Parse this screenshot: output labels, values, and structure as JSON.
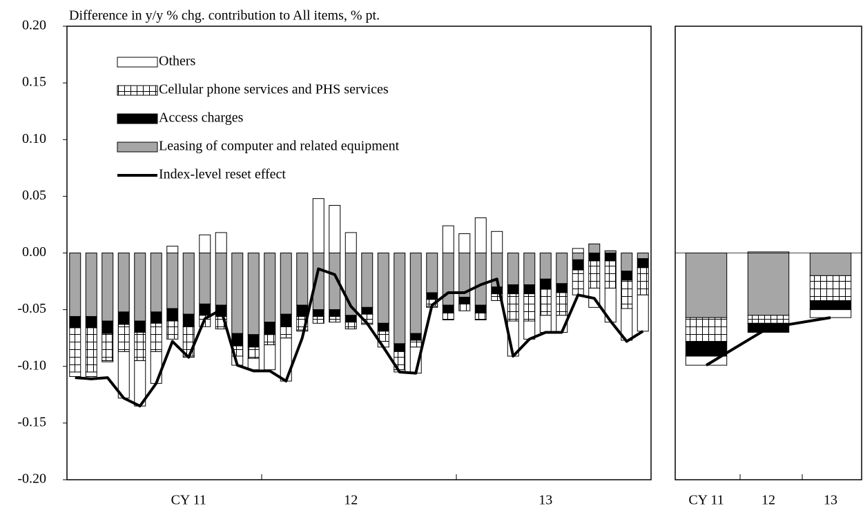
{
  "chart_data": [
    {
      "type": "bar",
      "title": "Difference in y/y % chg. contribution to All items, % pt.",
      "categories": [
        null,
        null,
        null,
        null,
        null,
        null,
        null,
        "CY 11",
        null,
        null,
        null,
        null,
        null,
        null,
        null,
        null,
        null,
        "12",
        null,
        null,
        null,
        null,
        null,
        null,
        null,
        null,
        null,
        null,
        null,
        "13",
        null,
        null,
        null,
        null,
        null,
        null
      ],
      "series": [
        {
          "name": "Leasing of computer and related equipment",
          "color": "#a6a6a6",
          "kind": "bar",
          "values": [
            -0.056,
            -0.056,
            -0.06,
            -0.052,
            -0.06,
            -0.052,
            -0.049,
            -0.054,
            -0.045,
            -0.046,
            -0.071,
            -0.072,
            -0.061,
            -0.054,
            -0.046,
            -0.05,
            -0.05,
            -0.055,
            -0.048,
            -0.062,
            -0.08,
            -0.071,
            -0.035,
            -0.046,
            -0.039,
            -0.046,
            -0.03,
            -0.028,
            -0.028,
            -0.023,
            -0.027,
            -0.006,
            0.008,
            0.002,
            -0.016,
            -0.005
          ]
        },
        {
          "name": "Access charges",
          "color": "#000000",
          "kind": "bar",
          "values": [
            -0.01,
            -0.01,
            -0.011,
            -0.011,
            -0.01,
            -0.01,
            -0.011,
            -0.011,
            -0.01,
            -0.01,
            -0.011,
            -0.011,
            -0.011,
            -0.011,
            -0.01,
            -0.006,
            -0.006,
            -0.006,
            -0.006,
            -0.007,
            -0.007,
            -0.006,
            -0.006,
            -0.007,
            -0.006,
            -0.007,
            -0.006,
            -0.008,
            -0.008,
            -0.009,
            -0.008,
            -0.009,
            -0.007,
            -0.007,
            -0.008,
            -0.008
          ]
        },
        {
          "name": "Cellular phone services and PHS services",
          "color": "#ffffff",
          "pattern": "grid",
          "kind": "bar",
          "values": [
            -0.039,
            -0.039,
            -0.024,
            -0.024,
            -0.025,
            -0.025,
            -0.016,
            -0.026,
            -0.01,
            -0.011,
            -0.009,
            -0.01,
            -0.009,
            -0.01,
            -0.012,
            -0.006,
            -0.005,
            -0.006,
            -0.008,
            -0.009,
            -0.016,
            -0.006,
            -0.006,
            -0.006,
            -0.006,
            -0.006,
            -0.006,
            -0.024,
            -0.024,
            -0.023,
            -0.02,
            -0.022,
            -0.024,
            -0.024,
            -0.025,
            -0.024
          ]
        },
        {
          "name": "Others",
          "color": "#ffffff",
          "kind": "bar",
          "values": [
            -0.004,
            -0.004,
            -0.001,
            -0.041,
            -0.04,
            -0.028,
            0.006,
            -0.001,
            0.016,
            0.018,
            -0.008,
            -0.01,
            -0.022,
            -0.038,
            -0.001,
            0.048,
            0.042,
            0.018,
            -0.001,
            -0.005,
            -0.002,
            -0.023,
            -0.001,
            0.024,
            0.017,
            0.031,
            0.019,
            -0.031,
            -0.016,
            -0.015,
            -0.015,
            0.004,
            -0.017,
            -0.03,
            -0.028,
            -0.032
          ]
        },
        {
          "name": "Index-level reset effect",
          "color": "#000000",
          "kind": "line",
          "values": [
            -0.11,
            -0.111,
            -0.11,
            -0.128,
            -0.135,
            -0.115,
            -0.078,
            -0.092,
            -0.058,
            -0.05,
            -0.099,
            -0.104,
            -0.104,
            -0.113,
            -0.075,
            -0.014,
            -0.019,
            -0.047,
            -0.062,
            -0.083,
            -0.105,
            -0.106,
            -0.046,
            -0.035,
            -0.035,
            -0.028,
            -0.023,
            -0.091,
            -0.076,
            -0.07,
            -0.07,
            -0.037,
            -0.04,
            -0.06,
            -0.078,
            -0.069
          ]
        }
      ],
      "legend_order": [
        3,
        2,
        1,
        0,
        4
      ],
      "ylim": [
        -0.2,
        0.2
      ],
      "yticks": [
        {
          "value": 0.2,
          "label": "0.20"
        },
        {
          "value": 0.15,
          "label": "0.15"
        },
        {
          "value": 0.1,
          "label": "0.10"
        },
        {
          "value": 0.05,
          "label": "0.05"
        },
        {
          "value": 0,
          "label": "0.00"
        },
        {
          "value": -0.05,
          "label": "-0.05"
        },
        {
          "value": -0.1,
          "label": "-0.10"
        },
        {
          "value": -0.15,
          "label": "-0.15"
        },
        {
          "value": -0.2,
          "label": "-0.20"
        }
      ],
      "legend": "upper left"
    },
    {
      "type": "bar",
      "categories": [
        "CY 11",
        "12",
        "13"
      ],
      "series": [
        {
          "color": "#a6a6a6",
          "kind": "bar",
          "values": [
            -0.057,
            -0.055,
            -0.02
          ]
        },
        {
          "color": "#ffffff",
          "pattern": "grid",
          "kind": "bar",
          "values": [
            -0.021,
            -0.007,
            -0.022
          ]
        },
        {
          "color": "#000000",
          "kind": "bar",
          "values": [
            -0.013,
            -0.008,
            -0.008
          ]
        },
        {
          "color": "#ffffff",
          "kind": "bar",
          "values": [
            -0.008,
            0.001,
            -0.007
          ]
        },
        {
          "color": "#000000",
          "kind": "line",
          "values": [
            -0.099,
            -0.066,
            -0.057
          ]
        }
      ],
      "ylim": [
        -0.2,
        0.2
      ],
      "zero_line": true
    }
  ]
}
